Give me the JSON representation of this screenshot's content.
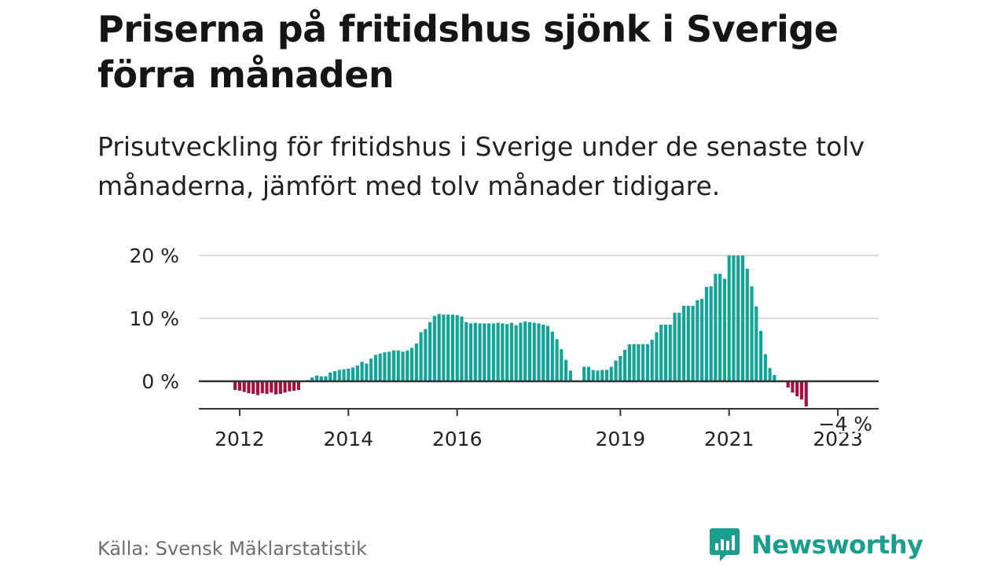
{
  "header": {
    "title": "Priserna på fritidshus sjönk i Sverige förra månaden",
    "subtitle": "Prisutveckling för fritidshus i Sverige under de senaste tolv månaderna, jämfört med tolv månader tidigare."
  },
  "footer": {
    "source": "Källa: Svensk Mäklarstatistik",
    "brand": "Newsworthy",
    "brand_icon": "newsworthy-logo-icon"
  },
  "colors": {
    "positive": "#12a39a",
    "negative": "#a5113f",
    "grid": "#dddddd",
    "axis": "#333333",
    "brand": "#1a9e8f"
  },
  "chart_data": {
    "type": "bar",
    "y_unit": "%",
    "ylim": [
      -4.5,
      20
    ],
    "y_ticks": [
      {
        "value": 0,
        "label": "0 %"
      },
      {
        "value": 10,
        "label": "10 %"
      },
      {
        "value": 20,
        "label": "20 %"
      }
    ],
    "x_ticks": [
      {
        "value": 2012.0,
        "label": "2012"
      },
      {
        "value": 2014.0,
        "label": "2014"
      },
      {
        "value": 2016.0,
        "label": "2016"
      },
      {
        "value": 2019.0,
        "label": "2019"
      },
      {
        "value": 2021.0,
        "label": "2021"
      },
      {
        "value": 2023.0,
        "label": "2023"
      }
    ],
    "xlim": [
      2011.25,
      2023.75
    ],
    "grid": true,
    "annotation": {
      "x": 2023.167,
      "value": -4,
      "label": "−4 %"
    },
    "series": [
      {
        "start": 2011.917,
        "step": 0.08333,
        "values": [
          -1.4,
          -1.5,
          -1.7,
          -1.9,
          -2.0,
          -2.2,
          -1.9,
          -2.0,
          -1.8,
          -2.1,
          -2.0,
          -1.8,
          -1.6,
          -1.5,
          -1.4,
          null,
          0.2,
          0.6,
          0.9,
          0.8,
          0.8,
          1.4,
          1.6,
          1.8,
          1.9,
          2.0,
          2.2,
          2.5,
          3.1,
          2.8,
          3.6,
          4.2,
          4.4,
          4.6,
          4.7,
          4.9,
          4.9,
          4.7,
          4.9,
          5.3,
          6.0,
          7.8,
          8.3,
          9.4,
          10.4,
          10.7,
          10.6,
          10.6,
          10.6,
          10.5,
          10.3,
          9.4,
          9.2,
          9.3,
          9.2,
          9.2,
          9.2,
          9.2,
          9.3,
          9.2,
          9.1,
          9.3,
          8.9,
          9.3,
          9.5,
          9.4,
          9.3,
          9.2,
          9.0,
          8.8,
          7.9,
          6.7,
          5.1,
          3.4,
          1.7,
          null,
          null,
          2.3,
          2.3,
          1.8,
          1.7,
          1.8,
          1.8,
          2.3,
          3.3,
          4.0,
          5.0,
          5.9,
          5.9,
          5.9,
          5.9,
          5.9,
          6.6,
          7.8,
          9.0,
          9.0,
          9.0,
          10.9,
          10.9,
          12.0,
          12.0,
          12.0,
          12.9,
          13.1,
          15.0,
          15.1,
          17.1,
          17.1,
          16.3,
          20.0,
          20.0,
          20.0,
          20.0,
          17.9,
          15.1,
          11.9,
          8.0,
          4.3,
          2.1,
          1.0,
          null,
          null,
          -1.0,
          -1.8,
          -2.4,
          -2.9,
          -4.0
        ]
      }
    ]
  }
}
